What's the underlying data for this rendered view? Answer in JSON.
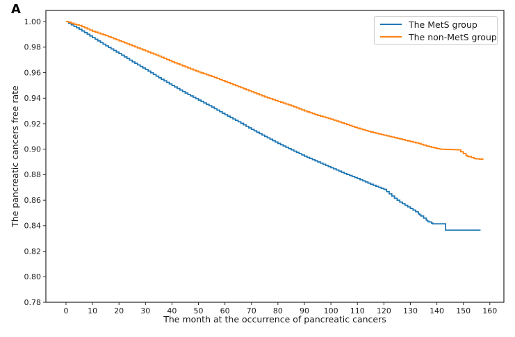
{
  "panel_label": "A",
  "colors": {
    "mets_blue": "#1f77b4",
    "non_mets_orange": "#ff7f0e",
    "axis": "#262626",
    "tick_text": "#1a1a1a",
    "legend_border": "#cccccc",
    "background": "#ffffff"
  },
  "legend": {
    "position": "upper right",
    "entries": [
      "The MetS group",
      "The non-MetS group"
    ]
  },
  "chart_data": {
    "type": "line",
    "subtype": "kaplan-meier-step",
    "title": "",
    "xlabel": "The month at the occurrence of pancreatic cancers",
    "ylabel": "The pancreatic cancers free rate",
    "xlim": [
      -7.6,
      165.3
    ],
    "ylim": [
      0.78,
      1.0088
    ],
    "xticks": [
      0,
      10,
      20,
      30,
      40,
      50,
      60,
      70,
      80,
      90,
      100,
      110,
      120,
      130,
      140,
      150,
      160
    ],
    "yticks": [
      0.78,
      0.8,
      0.82,
      0.84,
      0.86,
      0.88,
      0.9,
      0.92,
      0.94,
      0.96,
      0.98,
      1.0
    ],
    "grid": false,
    "legend_position": "upper right",
    "series": [
      {
        "name": "The MetS group",
        "color": "#1f77b4",
        "points": [
          [
            0,
            1.0
          ],
          [
            2,
            0.9975
          ],
          [
            5,
            0.994
          ],
          [
            10,
            0.9875
          ],
          [
            15,
            0.981
          ],
          [
            20,
            0.975
          ],
          [
            25,
            0.9685
          ],
          [
            30,
            0.9625
          ],
          [
            35,
            0.956
          ],
          [
            40,
            0.95
          ],
          [
            45,
            0.944
          ],
          [
            50,
            0.9385
          ],
          [
            55,
            0.933
          ],
          [
            60,
            0.927
          ],
          [
            65,
            0.9215
          ],
          [
            70,
            0.9155
          ],
          [
            75,
            0.91
          ],
          [
            80,
            0.9045
          ],
          [
            85,
            0.8995
          ],
          [
            90,
            0.8945
          ],
          [
            95,
            0.89
          ],
          [
            100,
            0.8855
          ],
          [
            105,
            0.881
          ],
          [
            110,
            0.877
          ],
          [
            115,
            0.8725
          ],
          [
            120,
            0.8685
          ],
          [
            122,
            0.865
          ],
          [
            124,
            0.8615
          ],
          [
            126,
            0.8585
          ],
          [
            128,
            0.856
          ],
          [
            130,
            0.8535
          ],
          [
            132,
            0.851
          ],
          [
            133.5,
            0.8485
          ],
          [
            135,
            0.846
          ],
          [
            136.5,
            0.8435
          ],
          [
            138.5,
            0.8415
          ],
          [
            143,
            0.8415
          ],
          [
            143.3,
            0.8365
          ],
          [
            156.5,
            0.8365
          ]
        ]
      },
      {
        "name": "The non-MetS group",
        "color": "#ff7f0e",
        "points": [
          [
            0,
            1.0
          ],
          [
            1,
            0.9995
          ],
          [
            3,
            0.998
          ],
          [
            5,
            0.997
          ],
          [
            10,
            0.9925
          ],
          [
            15,
            0.989
          ],
          [
            20,
            0.985
          ],
          [
            25,
            0.981
          ],
          [
            30,
            0.977
          ],
          [
            35,
            0.973
          ],
          [
            40,
            0.9685
          ],
          [
            45,
            0.9645
          ],
          [
            50,
            0.9605
          ],
          [
            55,
            0.957
          ],
          [
            60,
            0.953
          ],
          [
            65,
            0.949
          ],
          [
            70,
            0.945
          ],
          [
            75,
            0.941
          ],
          [
            80,
            0.9375
          ],
          [
            85,
            0.934
          ],
          [
            90,
            0.93
          ],
          [
            95,
            0.9265
          ],
          [
            100,
            0.9235
          ],
          [
            105,
            0.92
          ],
          [
            110,
            0.9165
          ],
          [
            115,
            0.9135
          ],
          [
            120,
            0.911
          ],
          [
            125,
            0.9085
          ],
          [
            130,
            0.906
          ],
          [
            133,
            0.9045
          ],
          [
            136,
            0.9025
          ],
          [
            138,
            0.9015
          ],
          [
            140,
            0.9005
          ],
          [
            141.5,
            0.9
          ],
          [
            148,
            0.8995
          ],
          [
            150,
            0.8965
          ],
          [
            151.5,
            0.8945
          ],
          [
            153,
            0.8935
          ],
          [
            154.5,
            0.8925
          ],
          [
            157.5,
            0.892
          ]
        ]
      }
    ]
  }
}
